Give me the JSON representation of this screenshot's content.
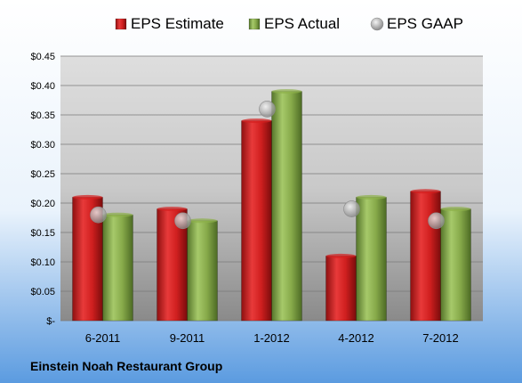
{
  "chart_data": {
    "type": "bar",
    "categories": [
      "6-2011",
      "9-2011",
      "1-2012",
      "4-2012",
      "7-2012"
    ],
    "series": [
      {
        "name": "EPS Estimate",
        "values": [
          0.21,
          0.19,
          0.34,
          0.11,
          0.22
        ],
        "color": "#d42020",
        "mark": "bar"
      },
      {
        "name": "EPS Actual",
        "values": [
          0.18,
          0.17,
          0.39,
          0.21,
          0.19
        ],
        "color": "#8db04a",
        "mark": "bar"
      },
      {
        "name": "EPS GAAP",
        "values": [
          0.18,
          0.17,
          0.36,
          0.19,
          0.17
        ],
        "color": "#b8b8b8",
        "mark": "marker"
      }
    ],
    "y_ticks": [
      "$-",
      "$0.05",
      "$0.10",
      "$0.15",
      "$0.20",
      "$0.25",
      "$0.30",
      "$0.35",
      "$0.40",
      "$0.45"
    ],
    "ylim": [
      0,
      0.45
    ],
    "grid": true,
    "legend_position": "top",
    "title": "",
    "xlabel": "",
    "ylabel": ""
  },
  "footer": {
    "company": "Einstein Noah Restaurant Group"
  }
}
